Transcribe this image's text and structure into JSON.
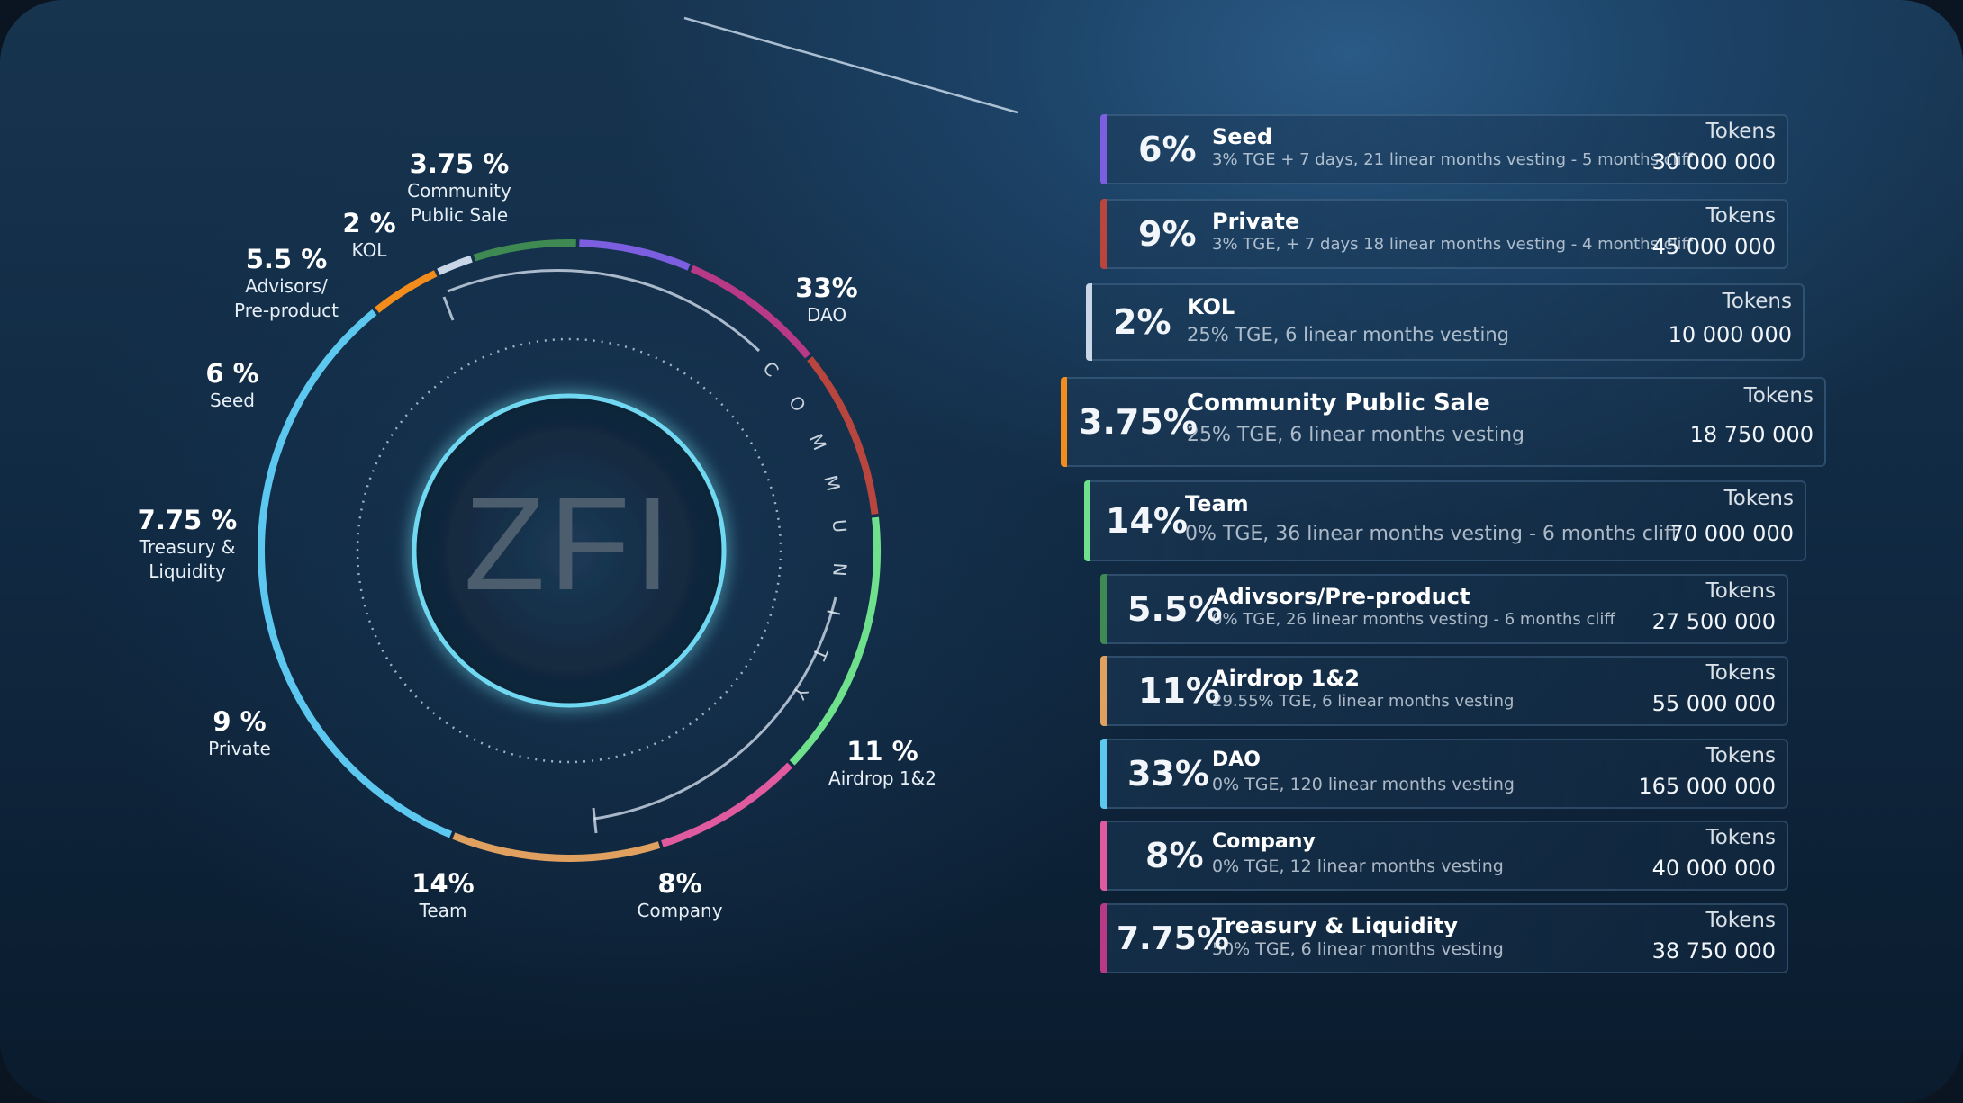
{
  "chart_data": {
    "type": "pie",
    "style": "donut",
    "center_label": "ZFI",
    "inner_ring_label": "COMMUNITY",
    "slices": [
      {
        "label": "Community Public Sale",
        "value": 3.75,
        "label_text": "3.75 %",
        "color": "#f28c1c"
      },
      {
        "label": "KOL",
        "value": 2,
        "label_text": "2 %",
        "color": "#c9d6e8"
      },
      {
        "label": "Advisors/ Pre-product",
        "value": 5.5,
        "label_text": "5.5 %",
        "color": "#3e8a52"
      },
      {
        "label": "Seed",
        "value": 6,
        "label_text": "6 %",
        "color": "#7b5fe0"
      },
      {
        "label": "Treasury & Liquidity",
        "value": 7.75,
        "label_text": "7.75 %",
        "color": "#b83a86"
      },
      {
        "label": "Private",
        "value": 9,
        "label_text": "9 %",
        "color": "#b8453e"
      },
      {
        "label": "Team",
        "value": 14,
        "label_text": "14%",
        "color": "#6fe08c"
      },
      {
        "label": "Company",
        "value": 8,
        "label_text": "8%",
        "color": "#e05aa0"
      },
      {
        "label": "Airdrop 1&2",
        "value": 11,
        "label_text": "11 %",
        "color": "#e0a060"
      },
      {
        "label": "DAO",
        "value": 33,
        "label_text": "33%",
        "color": "#5cc8f0"
      }
    ]
  },
  "legend": {
    "tokens_label": "Tokens",
    "rows": [
      {
        "pct": "6%",
        "name": "Seed",
        "desc": "3% TGE + 7 days, 21 linear months vesting - 5 months cliff",
        "tokens": "30 000 000",
        "color": "#7b5fe0"
      },
      {
        "pct": "9%",
        "name": "Private",
        "desc": "3% TGE, + 7 days  18 linear months vesting - 4 months cliff",
        "tokens": "45 000 000",
        "color": "#b8453e"
      },
      {
        "pct": "2%",
        "name": "KOL",
        "desc": "25% TGE, 6 linear months vesting",
        "tokens": "10 000 000",
        "color": "#c9d6e8"
      },
      {
        "pct": "3.75%",
        "name": "Community Public Sale",
        "desc": "25% TGE, 6 linear months vesting",
        "tokens": "18 750 000",
        "color": "#f28c1c"
      },
      {
        "pct": "14%",
        "name": "Team",
        "desc": "0% TGE, 36 linear months vesting - 6 months cliff",
        "tokens": "70 000 000",
        "color": "#6fe08c"
      },
      {
        "pct": "5.5%",
        "name": "Adivsors/Pre-product",
        "desc": "0% TGE, 26 linear months vesting - 6 months cliff",
        "tokens": "27 500 000",
        "color": "#3e8a52"
      },
      {
        "pct": "11%",
        "name": "Airdrop 1&2",
        "desc": "29.55% TGE, 6 linear months vesting",
        "tokens": "55 000 000",
        "color": "#e0a060"
      },
      {
        "pct": "33%",
        "name": "DAO",
        "desc": "0% TGE, 120 linear months vesting",
        "tokens": "165 000 000",
        "color": "#5cc8f0"
      },
      {
        "pct": "8%",
        "name": "Company",
        "desc": "0% TGE, 12 linear months vesting",
        "tokens": "40 000 000",
        "color": "#e05aa0"
      },
      {
        "pct": "7.75%",
        "name": "Treasury & Liquidity",
        "desc": "50% TGE, 6 linear months vesting",
        "tokens": "38 750 000",
        "color": "#b83a86"
      }
    ]
  }
}
